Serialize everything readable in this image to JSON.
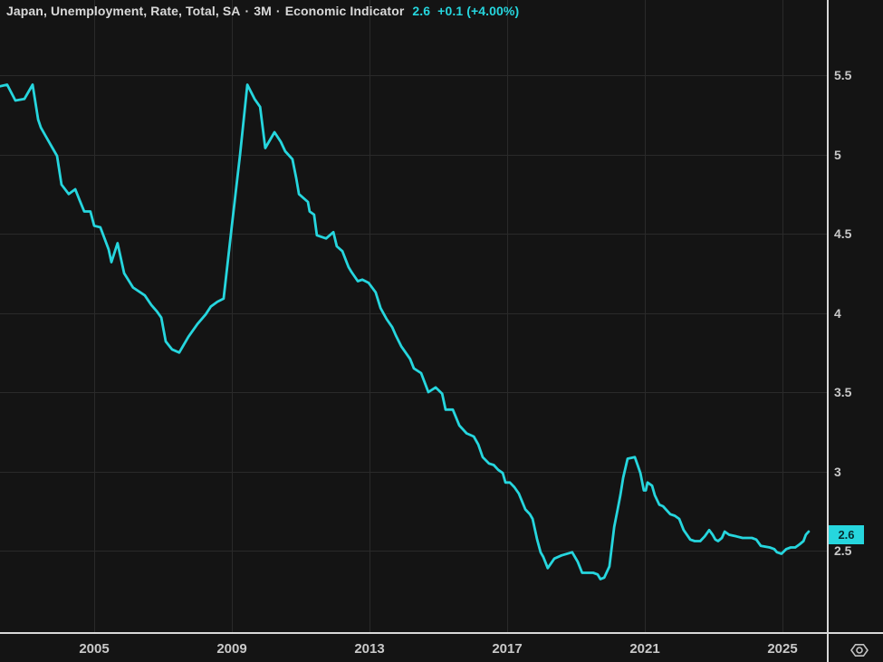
{
  "legend": {
    "symbol_title": "Japan, Unemployment, Rate, Total, SA",
    "separator": "·",
    "interval": "3M",
    "series_type": "Economic Indicator",
    "last_value": "2.6",
    "change": "+0.1",
    "change_percent": "(+4.00%)"
  },
  "y_axis": {
    "labels": [
      {
        "text": "5.5",
        "value": 5.5
      },
      {
        "text": "5",
        "value": 5.0
      },
      {
        "text": "4.5",
        "value": 4.5
      },
      {
        "text": "4",
        "value": 4.0
      },
      {
        "text": "3.5",
        "value": 3.5
      },
      {
        "text": "3",
        "value": 3.0
      },
      {
        "text": "2.5",
        "value": 2.5
      }
    ],
    "badge": {
      "text": "2.6",
      "value": 2.6
    }
  },
  "x_axis": {
    "labels": [
      {
        "text": "2005",
        "year": 2005
      },
      {
        "text": "2009",
        "year": 2009
      },
      {
        "text": "2013",
        "year": 2013
      },
      {
        "text": "2017",
        "year": 2017
      },
      {
        "text": "2021",
        "year": 2021
      },
      {
        "text": "2025",
        "year": 2025
      }
    ]
  },
  "controls": {
    "axis_settings_icon": "gear-hexagon-icon"
  },
  "colors": {
    "background": "#141414",
    "grid": "#2a2a2a",
    "axis_line": "#d8d8d8",
    "label": "#c9c9c9",
    "title_text": "#d9d9d9",
    "accent": "#26d6de",
    "badge_text": "#072c2f",
    "icon": "#c2c2c2"
  },
  "chart_data": {
    "type": "line",
    "title": "Japan, Unemployment, Rate, Total, SA · 3M · Economic Indicator",
    "legend_position": "top-left",
    "grid": true,
    "x_ticks": [
      2005,
      2009,
      2013,
      2017,
      2021,
      2025
    ],
    "y_ticks": [
      5.5,
      5.0,
      4.5,
      4.0,
      3.5,
      3.0,
      2.5
    ],
    "x_range": [
      2002.25,
      2026.2
    ],
    "y_range": [
      2.0,
      5.98
    ],
    "last_value": 2.6,
    "change": 0.1,
    "change_percent": 4.0,
    "series": [
      {
        "name": "Japan, Unemployment, Rate, Total, SA",
        "interval": "3M",
        "color": "#26d6de",
        "points": [
          [
            2002.26,
            5.43
          ],
          [
            2002.47,
            5.44
          ],
          [
            2002.71,
            5.34
          ],
          [
            2002.97,
            5.35
          ],
          [
            2003.21,
            5.44
          ],
          [
            2003.37,
            5.22
          ],
          [
            2003.45,
            5.17
          ],
          [
            2003.58,
            5.12
          ],
          [
            2003.79,
            5.04
          ],
          [
            2003.92,
            4.99
          ],
          [
            2004.05,
            4.81
          ],
          [
            2004.26,
            4.75
          ],
          [
            2004.45,
            4.78
          ],
          [
            2004.58,
            4.71
          ],
          [
            2004.71,
            4.64
          ],
          [
            2004.89,
            4.64
          ],
          [
            2005.0,
            4.55
          ],
          [
            2005.18,
            4.54
          ],
          [
            2005.42,
            4.4
          ],
          [
            2005.5,
            4.32
          ],
          [
            2005.68,
            4.44
          ],
          [
            2005.87,
            4.25
          ],
          [
            2006.13,
            4.16
          ],
          [
            2006.34,
            4.13
          ],
          [
            2006.47,
            4.11
          ],
          [
            2006.66,
            4.05
          ],
          [
            2006.82,
            4.01
          ],
          [
            2006.95,
            3.97
          ],
          [
            2007.08,
            3.82
          ],
          [
            2007.26,
            3.77
          ],
          [
            2007.47,
            3.75
          ],
          [
            2007.74,
            3.85
          ],
          [
            2008.0,
            3.93
          ],
          [
            2008.24,
            3.99
          ],
          [
            2008.39,
            4.04
          ],
          [
            2008.58,
            4.07
          ],
          [
            2008.76,
            4.09
          ],
          [
            2009.0,
            4.55
          ],
          [
            2009.24,
            5.0
          ],
          [
            2009.45,
            5.44
          ],
          [
            2009.66,
            5.35
          ],
          [
            2009.82,
            5.3
          ],
          [
            2009.97,
            5.04
          ],
          [
            2010.24,
            5.14
          ],
          [
            2010.42,
            5.08
          ],
          [
            2010.55,
            5.02
          ],
          [
            2010.76,
            4.97
          ],
          [
            2010.87,
            4.85
          ],
          [
            2010.95,
            4.75
          ],
          [
            2011.21,
            4.7
          ],
          [
            2011.26,
            4.64
          ],
          [
            2011.39,
            4.62
          ],
          [
            2011.47,
            4.49
          ],
          [
            2011.74,
            4.47
          ],
          [
            2011.95,
            4.51
          ],
          [
            2012.05,
            4.42
          ],
          [
            2012.21,
            4.39
          ],
          [
            2012.39,
            4.29
          ],
          [
            2012.47,
            4.26
          ],
          [
            2012.66,
            4.2
          ],
          [
            2012.79,
            4.21
          ],
          [
            2012.97,
            4.19
          ],
          [
            2013.18,
            4.13
          ],
          [
            2013.32,
            4.03
          ],
          [
            2013.5,
            3.96
          ],
          [
            2013.66,
            3.91
          ],
          [
            2013.76,
            3.86
          ],
          [
            2013.92,
            3.79
          ],
          [
            2014.18,
            3.71
          ],
          [
            2014.29,
            3.65
          ],
          [
            2014.5,
            3.62
          ],
          [
            2014.71,
            3.5
          ],
          [
            2014.92,
            3.53
          ],
          [
            2015.11,
            3.49
          ],
          [
            2015.21,
            3.39
          ],
          [
            2015.42,
            3.39
          ],
          [
            2015.61,
            3.29
          ],
          [
            2015.82,
            3.24
          ],
          [
            2016.03,
            3.22
          ],
          [
            2016.16,
            3.17
          ],
          [
            2016.29,
            3.09
          ],
          [
            2016.47,
            3.05
          ],
          [
            2016.61,
            3.04
          ],
          [
            2016.74,
            3.01
          ],
          [
            2016.87,
            2.99
          ],
          [
            2016.95,
            2.93
          ],
          [
            2017.08,
            2.93
          ],
          [
            2017.21,
            2.9
          ],
          [
            2017.34,
            2.86
          ],
          [
            2017.53,
            2.76
          ],
          [
            2017.66,
            2.73
          ],
          [
            2017.74,
            2.7
          ],
          [
            2017.87,
            2.57
          ],
          [
            2017.97,
            2.49
          ],
          [
            2018.05,
            2.46
          ],
          [
            2018.18,
            2.39
          ],
          [
            2018.37,
            2.45
          ],
          [
            2018.58,
            2.47
          ],
          [
            2018.89,
            2.49
          ],
          [
            2019.05,
            2.43
          ],
          [
            2019.18,
            2.36
          ],
          [
            2019.5,
            2.36
          ],
          [
            2019.63,
            2.35
          ],
          [
            2019.71,
            2.32
          ],
          [
            2019.82,
            2.33
          ],
          [
            2019.97,
            2.4
          ],
          [
            2020.11,
            2.65
          ],
          [
            2020.21,
            2.76
          ],
          [
            2020.29,
            2.85
          ],
          [
            2020.37,
            2.96
          ],
          [
            2020.5,
            3.08
          ],
          [
            2020.71,
            3.09
          ],
          [
            2020.87,
            2.99
          ],
          [
            2020.97,
            2.88
          ],
          [
            2021.03,
            2.88
          ],
          [
            2021.08,
            2.93
          ],
          [
            2021.21,
            2.91
          ],
          [
            2021.29,
            2.85
          ],
          [
            2021.42,
            2.79
          ],
          [
            2021.53,
            2.78
          ],
          [
            2021.74,
            2.73
          ],
          [
            2021.87,
            2.72
          ],
          [
            2022.0,
            2.7
          ],
          [
            2022.13,
            2.63
          ],
          [
            2022.32,
            2.57
          ],
          [
            2022.45,
            2.56
          ],
          [
            2022.61,
            2.56
          ],
          [
            2022.74,
            2.59
          ],
          [
            2022.87,
            2.63
          ],
          [
            2022.97,
            2.6
          ],
          [
            2023.05,
            2.57
          ],
          [
            2023.13,
            2.56
          ],
          [
            2023.24,
            2.58
          ],
          [
            2023.32,
            2.62
          ],
          [
            2023.45,
            2.6
          ],
          [
            2023.66,
            2.59
          ],
          [
            2023.84,
            2.58
          ],
          [
            2024.11,
            2.58
          ],
          [
            2024.24,
            2.57
          ],
          [
            2024.37,
            2.53
          ],
          [
            2024.63,
            2.52
          ],
          [
            2024.76,
            2.51
          ],
          [
            2024.84,
            2.49
          ],
          [
            2024.97,
            2.48
          ],
          [
            2025.11,
            2.51
          ],
          [
            2025.24,
            2.52
          ],
          [
            2025.37,
            2.52
          ],
          [
            2025.5,
            2.54
          ],
          [
            2025.61,
            2.56
          ],
          [
            2025.68,
            2.6
          ],
          [
            2025.76,
            2.62
          ]
        ]
      }
    ]
  }
}
